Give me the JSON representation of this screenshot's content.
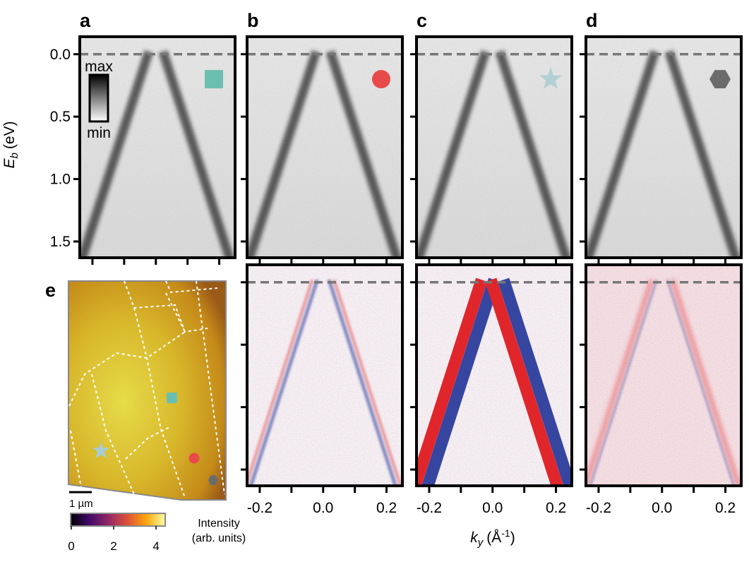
{
  "panels": [
    {
      "label": "a"
    },
    {
      "label": "b"
    },
    {
      "label": "c"
    },
    {
      "label": "d"
    }
  ],
  "panel_e": {
    "label": "e"
  },
  "y_axis": {
    "label": "E",
    "label_sub": "b",
    "unit": "(eV)",
    "ylim": [
      -0.14,
      1.63
    ],
    "ticks": [
      {
        "value": 0,
        "label": "0.0"
      },
      {
        "value": 0.5,
        "label": "0.5"
      },
      {
        "value": 1,
        "label": "1.0"
      },
      {
        "value": 1.5,
        "label": "1.5"
      }
    ]
  },
  "x_axis": {
    "label": "k",
    "label_sub": "y",
    "unit_open": "(Å",
    "unit_sup": "-1",
    "unit_close": ")",
    "xlim": [
      -0.24,
      0.25
    ],
    "ticks": [
      {
        "value": -0.2,
        "label": "-0.2"
      },
      {
        "value": 0,
        "label": "0.0"
      },
      {
        "value": 0.2,
        "label": "0.2"
      }
    ],
    "minor_ticks": [
      -0.1,
      0.1
    ]
  },
  "gray_colorbar": {
    "max": "max",
    "min": "min"
  },
  "map": {
    "scale_bar": "1 µm",
    "colorbar": {
      "lim": [
        0,
        4.43
      ],
      "ticks": [
        0,
        2,
        4
      ],
      "label_line1": "Intensity",
      "label_line2": "(arb. units)"
    }
  }
}
